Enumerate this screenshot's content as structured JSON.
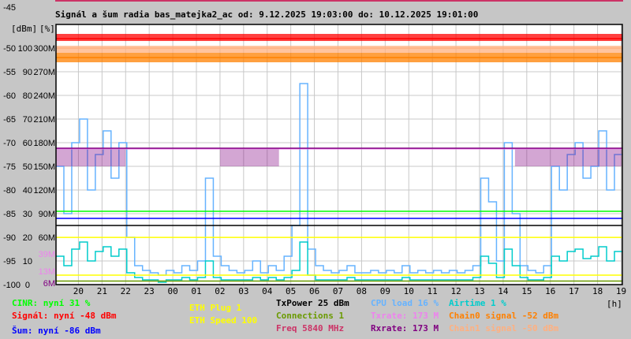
{
  "chart_data": {
    "type": "line",
    "title": "Signál a šum radia bas_matejka2_ac od: 9.12.2025 19:03:00 do: 10.12.2025 19:01:00",
    "axis_units": {
      "dbm": "[dBm]",
      "percent": "[%]",
      "x": "[h]"
    },
    "ylim_dbm": [
      -100,
      -45
    ],
    "ylim_percent": [
      0,
      110
    ],
    "ylim_rate_M": [
      0,
      330
    ],
    "grid": true,
    "x_range": [
      "9.12.2025 19:03:00",
      "10.12.2025 19:01:00"
    ],
    "x_ticks": [
      "20",
      "21",
      "22",
      "23",
      "00",
      "01",
      "02",
      "03",
      "04",
      "05",
      "06",
      "07",
      "08",
      "09",
      "10",
      "11",
      "12",
      "13",
      "14",
      "15",
      "16",
      "17",
      "18",
      "19"
    ],
    "y_ticks": [
      {
        "dbm": "-45",
        "pct": "",
        "rate": ""
      },
      {
        "dbm": "-50",
        "pct": "100",
        "rate": "300M"
      },
      {
        "dbm": "-55",
        "pct": "90",
        "rate": "270M"
      },
      {
        "dbm": "-60",
        "pct": "80",
        "rate": "240M"
      },
      {
        "dbm": "-65",
        "pct": "70",
        "rate": "210M"
      },
      {
        "dbm": "-70",
        "pct": "60",
        "rate": "180M"
      },
      {
        "dbm": "-75",
        "pct": "50",
        "rate": "150M"
      },
      {
        "dbm": "-80",
        "pct": "40",
        "rate": "120M"
      },
      {
        "dbm": "-85",
        "pct": "30",
        "rate": "90M"
      },
      {
        "dbm": "-90",
        "pct": "20",
        "rate": "60M"
      },
      {
        "dbm": "-95",
        "pct": "10",
        "rate": ""
      },
      {
        "dbm": "-100",
        "pct": "0",
        "rate": ""
      }
    ],
    "rate_markers": [
      {
        "label": "39M",
        "value_M": 39,
        "color": "#ee82ee"
      },
      {
        "label": "13M",
        "value_M": 13,
        "color": "#ee82ee"
      },
      {
        "label": "6M",
        "value_M": 6,
        "color": "#800080"
      }
    ],
    "sample_interval_min": 20,
    "series": [
      {
        "name": "Signál",
        "unit": "dBm",
        "color": "#ff0000",
        "level": -48,
        "band": [
          -48.5,
          -47
        ]
      },
      {
        "name": "Chain1 signal",
        "unit": "dBm",
        "color": "#ffb080",
        "level": -50,
        "band": [
          -51,
          -49.5
        ]
      },
      {
        "name": "Chain0 signal",
        "unit": "dBm",
        "color": "#ff8000",
        "level": -52,
        "band": [
          -53,
          -51
        ]
      },
      {
        "name": "Txrate",
        "unit": "M",
        "color": "#ee82ee",
        "level": 173,
        "dip": 150
      },
      {
        "name": "Rxrate",
        "unit": "M",
        "color": "#800080",
        "level": 173,
        "dip": 150,
        "dip_windows_h": [
          [
            "19:03",
            "22:00"
          ],
          [
            "02:00",
            "04:30"
          ],
          [
            "14:30",
            "19:01"
          ]
        ]
      },
      {
        "name": "CINR",
        "unit": "%",
        "color": "#00ff00",
        "level": 31
      },
      {
        "name": "Šum",
        "unit": "dBm",
        "color": "#0000ff",
        "level": -86
      },
      {
        "name": "TxPower",
        "unit": "dBm",
        "color": "#000000",
        "level": 25
      },
      {
        "name": "ETH Speed",
        "unit": "M",
        "color": "#ffff00",
        "level": 100
      },
      {
        "name": "ETH Plug",
        "color": "#ffff00",
        "level": 1
      },
      {
        "name": "Connections",
        "color": "#6a9a00",
        "level": 1
      },
      {
        "name": "CPU load",
        "unit": "%",
        "color": "#66b3ff",
        "values": [
          50,
          30,
          60,
          70,
          40,
          55,
          65,
          45,
          60,
          20,
          8,
          6,
          5,
          4,
          6,
          5,
          8,
          6,
          10,
          45,
          12,
          8,
          6,
          5,
          6,
          10,
          5,
          8,
          6,
          12,
          25,
          85,
          15,
          8,
          6,
          5,
          6,
          8,
          5,
          5,
          6,
          5,
          6,
          5,
          8,
          5,
          6,
          5,
          6,
          5,
          6,
          5,
          6,
          8,
          45,
          35,
          10,
          60,
          30,
          8,
          6,
          5,
          8,
          50,
          40,
          55,
          60,
          45,
          50,
          65,
          40,
          55
        ]
      },
      {
        "name": "Airtime",
        "unit": "%",
        "color": "#00cccc",
        "values": [
          12,
          8,
          15,
          18,
          10,
          14,
          16,
          12,
          15,
          5,
          3,
          2,
          2,
          1,
          2,
          2,
          3,
          2,
          3,
          10,
          3,
          2,
          2,
          2,
          2,
          3,
          2,
          3,
          2,
          3,
          6,
          18,
          4,
          2,
          2,
          2,
          2,
          3,
          2,
          2,
          2,
          2,
          2,
          2,
          3,
          2,
          2,
          2,
          2,
          2,
          2,
          2,
          2,
          3,
          12,
          9,
          3,
          15,
          8,
          3,
          2,
          2,
          3,
          12,
          10,
          14,
          15,
          11,
          12,
          16,
          10,
          14
        ]
      }
    ]
  },
  "legend": {
    "cinr": "CINR: nyní 31 %",
    "signal": "Signál: nyní -48 dBm",
    "noise": "Šum: nyní -86 dBm",
    "eth_plug": "ETH Plug 1",
    "eth_speed": "ETH Speed 100",
    "txpower": "TxPower 25 dBm",
    "connections": "Connections 1",
    "freq": "Freq 5840 MHz",
    "cpu": "CPU load 16 %",
    "txrate": "Txrate: 173 M",
    "rxrate": "Rxrate: 173 M",
    "airtime": "Airtime 1 %",
    "chain0": "Chain0 signal -52 dBm",
    "chain1": "Chain1 signal -50 dBm"
  },
  "colors": {
    "background": "#c6c6c6",
    "plot": "#ffffff",
    "grid": "#c8c8c8",
    "top_rule": "#cc3366",
    "freq": "#cc3366"
  }
}
